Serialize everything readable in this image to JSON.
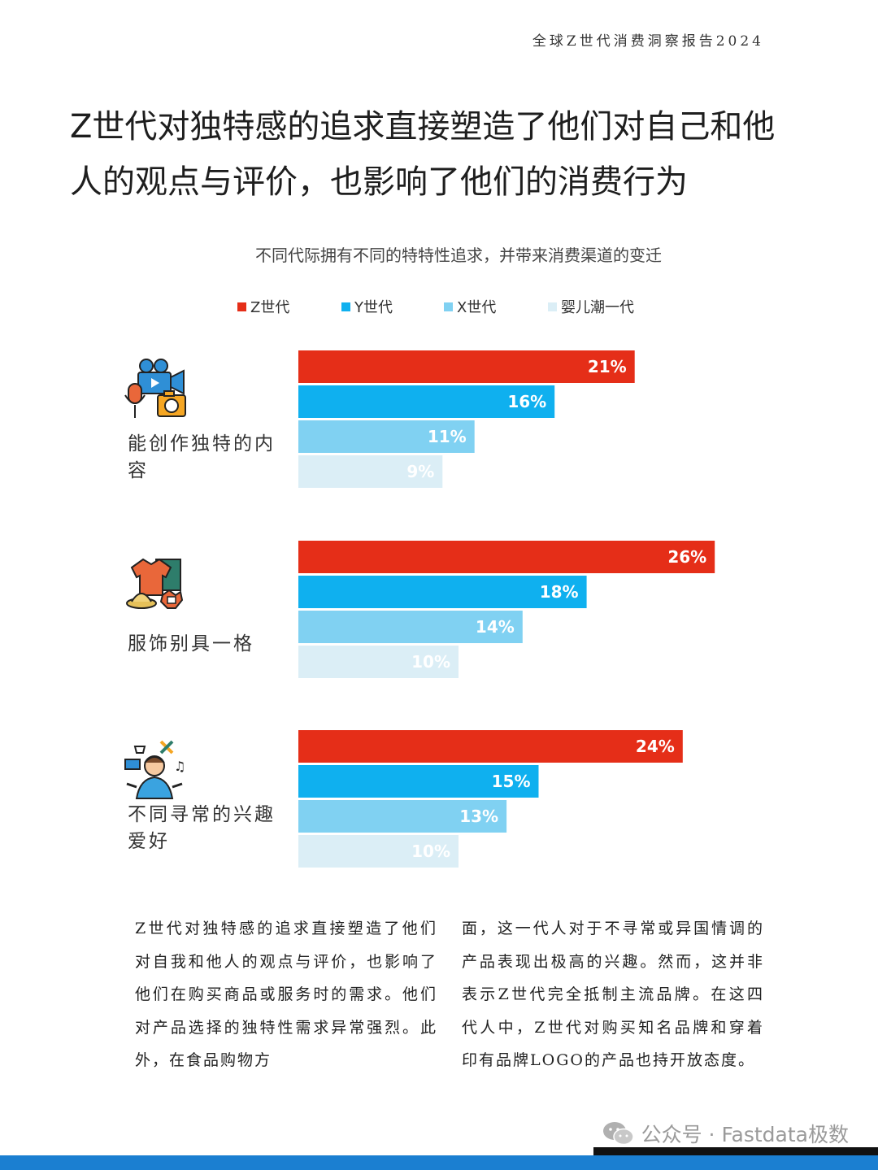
{
  "report": {
    "header": "全球Z世代消费洞察报告2024"
  },
  "headline": {
    "line1": "Z世代对独特感的追求直接塑造了他们对自己和他",
    "line2": "人的观点与评价，也影响了他们的消费行为"
  },
  "chart_data": {
    "type": "bar",
    "orientation": "horizontal",
    "title": "不同代际拥有不同的特特性追求，并带来消费渠道的变迁",
    "categories": [
      "能创作独特的内容",
      "服饰别具一格",
      "不同寻常的兴趣爱好"
    ],
    "category_lines": [
      [
        "能创作独特的内",
        "容"
      ],
      [
        "服饰别具一格"
      ],
      [
        "不同寻常的兴趣",
        "爱好"
      ]
    ],
    "series": [
      {
        "name": "Z世代",
        "color": "#e52e18",
        "values": [
          21,
          26,
          24
        ],
        "labels": [
          "21%",
          "26%",
          "24%"
        ]
      },
      {
        "name": "Y世代",
        "color": "#0fb0ef",
        "values": [
          16,
          18,
          15
        ],
        "labels": [
          "16%",
          "18%",
          "15%"
        ]
      },
      {
        "name": "X世代",
        "color": "#80d1f2",
        "values": [
          11,
          14,
          13
        ],
        "labels": [
          "11%",
          "14%",
          "13%"
        ]
      },
      {
        "name": "婴儿潮一代",
        "color": "#dbeef6",
        "values": [
          9,
          10,
          10
        ],
        "labels": [
          "9%",
          "10%",
          "10%"
        ]
      }
    ],
    "legend_position": "top",
    "grid": false
  },
  "body": {
    "col1": "Z世代对独特感的追求直接塑造了他们对自我和他人的观点与评价，也影响了他们在购买商品或服务时的需求。他们对产品选择的独特性需求异常强烈。此外，在食品购物方",
    "col2": "面，这一代人对于不寻常或异国情调的产品表现出极高的兴趣。然而，这并非表示Z世代完全抵制主流品牌。在这四代人中，Z世代对购买知名品牌和穿着印有品牌LOGO的产品也持开放态度。"
  },
  "watermark": {
    "text": "公众号 · Fastdata极数"
  },
  "icons": [
    "video-camera-microphone-icon",
    "clothing-hat-icon",
    "person-hobbies-icon",
    "wechat-icon"
  ]
}
